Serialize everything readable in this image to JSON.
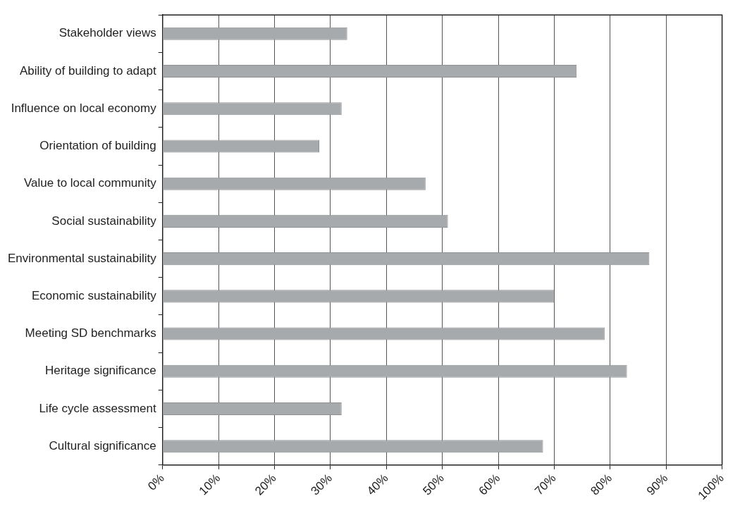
{
  "chart_data": {
    "type": "bar",
    "orientation": "horizontal",
    "categories": [
      "Stakeholder views",
      "Ability of building to adapt",
      "Influence on local economy",
      "Orientation of building",
      "Value to local community",
      "Social sustainability",
      "Environmental sustainability",
      "Economic sustainability",
      "Meeting SD benchmarks",
      "Heritage significance",
      "Life cycle assessment",
      "Cultural significance"
    ],
    "values": [
      33,
      74,
      32,
      28,
      47,
      51,
      87,
      70,
      79,
      83,
      32,
      68
    ],
    "color": "#a7aaad",
    "xlim": [
      0,
      100
    ],
    "xticks": [
      {
        "value": 0,
        "label": "0%"
      },
      {
        "value": 10,
        "label": "10%"
      },
      {
        "value": 20,
        "label": "20%"
      },
      {
        "value": 30,
        "label": "30%"
      },
      {
        "value": 40,
        "label": "40%"
      },
      {
        "value": 50,
        "label": "50%"
      },
      {
        "value": 60,
        "label": "60%"
      },
      {
        "value": 70,
        "label": "70%"
      },
      {
        "value": 80,
        "label": "80%"
      },
      {
        "value": 90,
        "label": "90%"
      },
      {
        "value": 100,
        "label": "100%"
      }
    ],
    "grid": "x",
    "legend": false
  }
}
